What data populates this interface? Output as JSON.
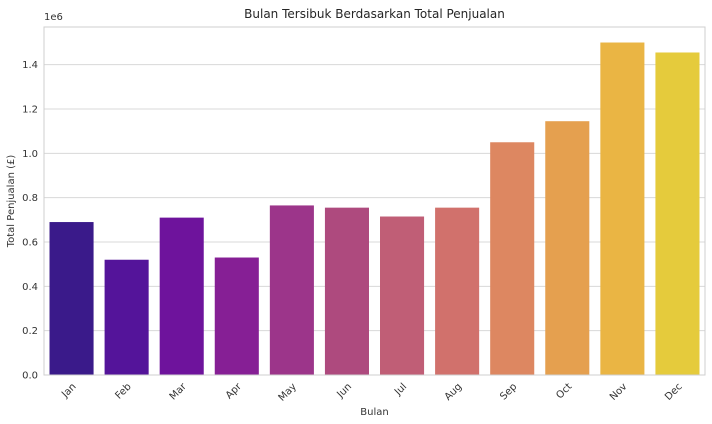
{
  "chart_data": {
    "type": "bar",
    "title": "Bulan Tersibuk Berdasarkan Total Penjualan",
    "xlabel": "Bulan",
    "ylabel": "Total Penjualan (£)",
    "y_offset_label": "1e6",
    "ylim": [
      0,
      1.57
    ],
    "yticks": [
      "0.0",
      "0.2",
      "0.4",
      "0.6",
      "0.8",
      "1.0",
      "1.2",
      "1.4"
    ],
    "ytick_values": [
      0.0,
      0.2,
      0.4,
      0.6,
      0.8,
      1.0,
      1.2,
      1.4
    ],
    "grid": true,
    "categories": [
      "Jan",
      "Feb",
      "Mar",
      "Apr",
      "May",
      "Jun",
      "Jul",
      "Aug",
      "Sep",
      "Oct",
      "Nov",
      "Dec"
    ],
    "values": [
      0.69,
      0.52,
      0.71,
      0.53,
      0.765,
      0.755,
      0.715,
      0.755,
      1.05,
      1.145,
      1.5,
      1.455
    ],
    "colors": [
      "#3a1a8a",
      "#54149a",
      "#6e139c",
      "#861f95",
      "#9c358a",
      "#ae4a7e",
      "#c05e76",
      "#d1716c",
      "#dd8761",
      "#e5a04f",
      "#eab544",
      "#e5cb3c"
    ]
  }
}
